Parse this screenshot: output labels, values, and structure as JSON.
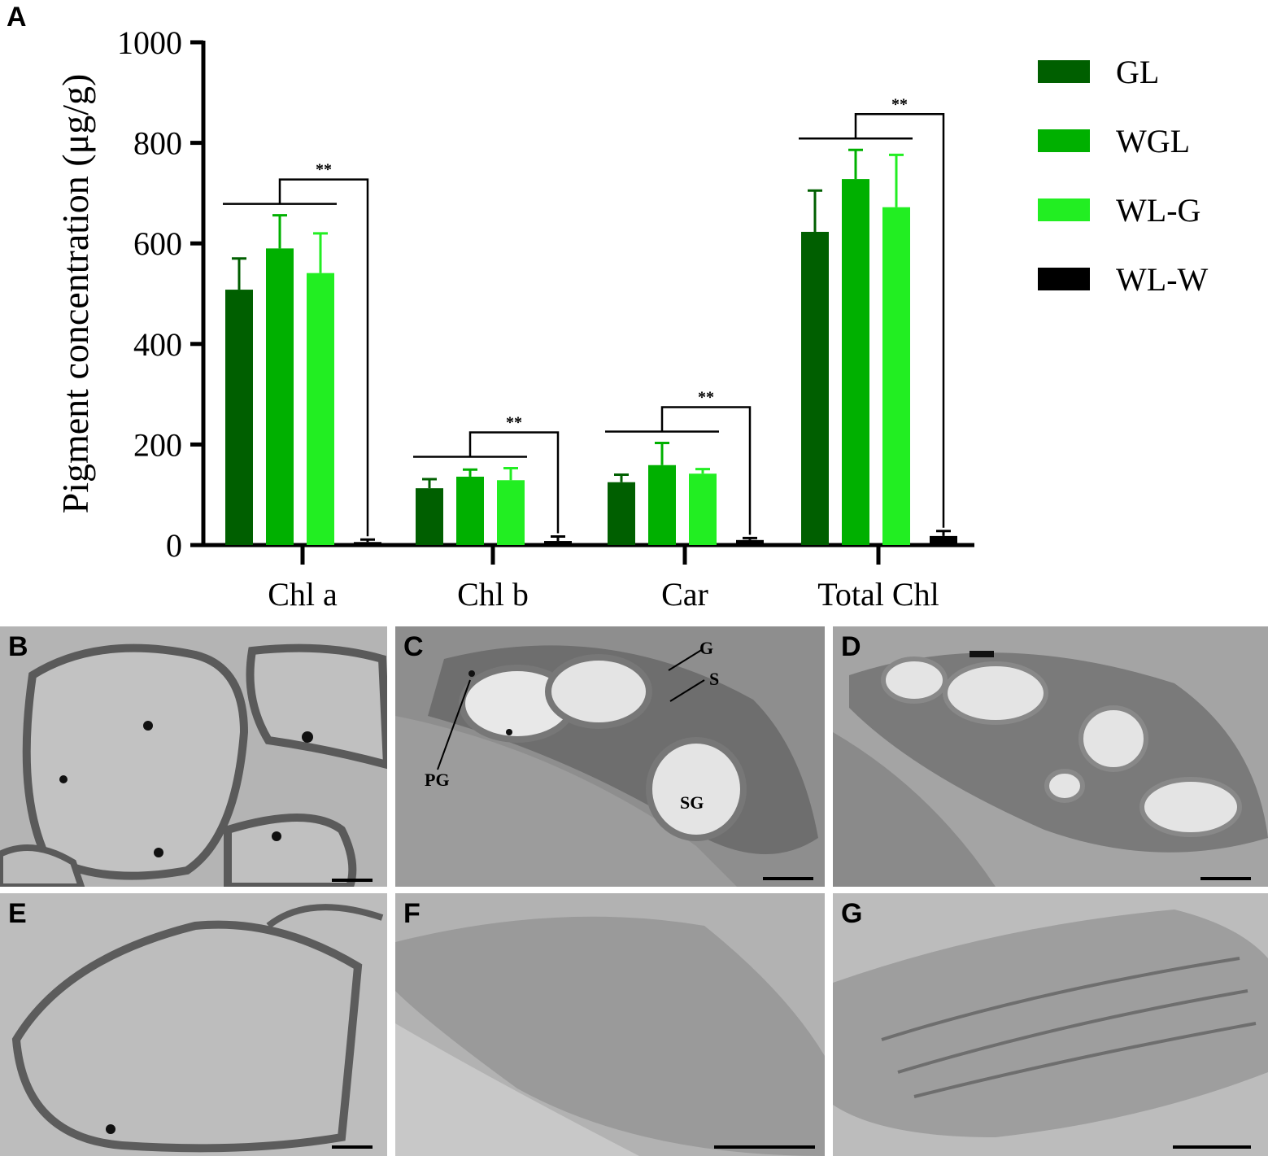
{
  "panel_label_chart": "A",
  "chart_data": {
    "type": "bar",
    "categories": [
      "Chl a",
      "Chl b",
      "Car",
      "Total Chl"
    ],
    "ylabel": "Pigment concentration (μg/g)",
    "xlabel": "",
    "ylim": [
      0,
      1000
    ],
    "yticks": [
      "0",
      "200",
      "400",
      "600",
      "800",
      "1000"
    ],
    "legend_position": "right",
    "series": [
      {
        "name": "GL",
        "color": "#005f00",
        "values": [
          508,
          113,
          125,
          623
        ],
        "errors": [
          62,
          18,
          15,
          82
        ]
      },
      {
        "name": "WGL",
        "color": "#00b000",
        "values": [
          590,
          136,
          159,
          728
        ],
        "errors": [
          66,
          14,
          44,
          58
        ]
      },
      {
        "name": "WL-G",
        "color": "#22ee22",
        "values": [
          541,
          129,
          142,
          672
        ],
        "errors": [
          79,
          24,
          9,
          104
        ]
      },
      {
        "name": "WL-W",
        "color": "#000000",
        "values": [
          6,
          8,
          10,
          18
        ],
        "errors": [
          5,
          9,
          4,
          10
        ]
      }
    ],
    "significance_label": "**"
  },
  "micrographs": [
    {
      "label": "B",
      "annotations": []
    },
    {
      "label": "C",
      "annotations": [
        "G",
        "S",
        "PG",
        "SG"
      ]
    },
    {
      "label": "D",
      "annotations": []
    },
    {
      "label": "E",
      "annotations": []
    },
    {
      "label": "F",
      "annotations": []
    },
    {
      "label": "G",
      "annotations": []
    }
  ]
}
